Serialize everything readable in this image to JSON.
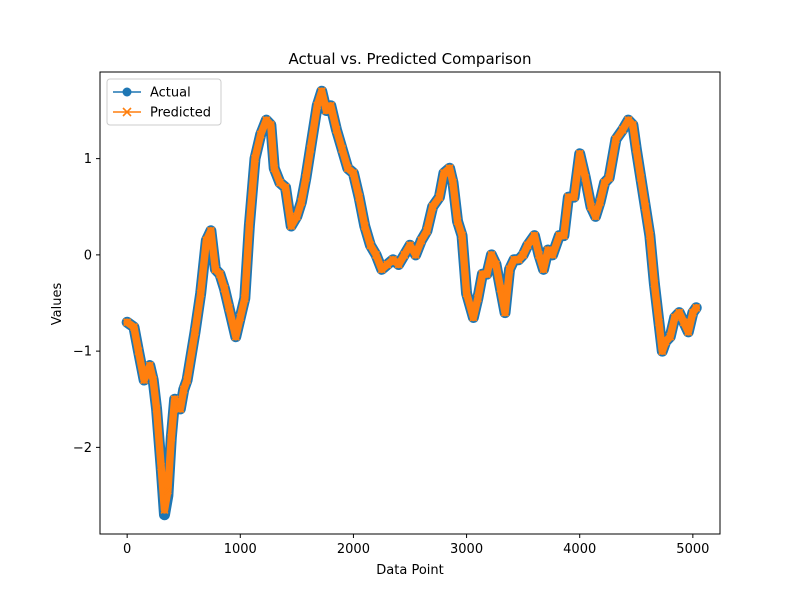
{
  "chart_data": {
    "type": "line",
    "title": "Actual vs. Predicted Comparison",
    "xlabel": "Data Point",
    "ylabel": "Values",
    "xlim": [
      -240,
      5240
    ],
    "ylim": [
      -2.9,
      1.9
    ],
    "xticks": [
      0,
      1000,
      2000,
      3000,
      4000,
      5000
    ],
    "xtick_labels": [
      "0",
      "1000",
      "2000",
      "3000",
      "4000",
      "5000"
    ],
    "yticks": [
      -2,
      -1,
      0,
      1
    ],
    "ytick_labels": [
      "−2",
      "−1",
      "0",
      "1"
    ],
    "grid": false,
    "legend_position": "upper-left",
    "series": [
      {
        "name": "Actual",
        "color": "#1f77b4",
        "marker": "circle",
        "x": [
          0,
          60,
          100,
          150,
          200,
          230,
          260,
          300,
          330,
          360,
          390,
          420,
          470,
          500,
          530,
          600,
          650,
          700,
          740,
          780,
          820,
          860,
          900,
          960,
          1000,
          1040,
          1080,
          1130,
          1180,
          1230,
          1270,
          1300,
          1350,
          1400,
          1450,
          1500,
          1540,
          1580,
          1620,
          1680,
          1720,
          1760,
          1800,
          1850,
          1900,
          1950,
          2000,
          2050,
          2100,
          2150,
          2200,
          2250,
          2300,
          2350,
          2400,
          2450,
          2500,
          2550,
          2600,
          2650,
          2700,
          2760,
          2800,
          2850,
          2880,
          2920,
          2960,
          3000,
          3060,
          3100,
          3140,
          3180,
          3220,
          3260,
          3300,
          3340,
          3380,
          3420,
          3460,
          3500,
          3540,
          3600,
          3640,
          3680,
          3720,
          3760,
          3820,
          3860,
          3900,
          3950,
          4000,
          4050,
          4100,
          4140,
          4180,
          4220,
          4260,
          4320,
          4380,
          4430,
          4470,
          4500,
          4540,
          4580,
          4620,
          4660,
          4700,
          4730,
          4760,
          4800,
          4840,
          4880,
          4920,
          4960,
          5000,
          5030
        ],
        "y": [
          -0.7,
          -0.75,
          -1.0,
          -1.3,
          -1.15,
          -1.3,
          -1.6,
          -2.2,
          -2.7,
          -2.5,
          -1.9,
          -1.5,
          -1.6,
          -1.4,
          -1.3,
          -0.8,
          -0.4,
          0.15,
          0.25,
          -0.15,
          -0.2,
          -0.35,
          -0.55,
          -0.85,
          -0.65,
          -0.45,
          0.3,
          1.0,
          1.25,
          1.4,
          1.35,
          0.9,
          0.75,
          0.7,
          0.3,
          0.4,
          0.55,
          0.8,
          1.1,
          1.55,
          1.7,
          1.5,
          1.55,
          1.3,
          1.1,
          0.9,
          0.85,
          0.6,
          0.3,
          0.1,
          0.0,
          -0.15,
          -0.1,
          -0.05,
          -0.1,
          0.0,
          0.1,
          0.0,
          0.15,
          0.25,
          0.5,
          0.6,
          0.85,
          0.9,
          0.75,
          0.35,
          0.2,
          -0.4,
          -0.65,
          -0.45,
          -0.2,
          -0.2,
          0.0,
          -0.1,
          -0.35,
          -0.6,
          -0.15,
          -0.05,
          -0.05,
          0.0,
          0.1,
          0.2,
          0.0,
          -0.15,
          0.05,
          0.0,
          0.2,
          0.2,
          0.6,
          0.6,
          1.05,
          0.8,
          0.5,
          0.4,
          0.55,
          0.75,
          0.8,
          1.2,
          1.3,
          1.4,
          1.35,
          1.1,
          0.8,
          0.5,
          0.2,
          -0.3,
          -0.7,
          -1.0,
          -0.9,
          -0.85,
          -0.65,
          -0.6,
          -0.7,
          -0.8,
          -0.6,
          -0.55
        ]
      },
      {
        "name": "Predicted",
        "color": "#ff7f0e",
        "marker": "x",
        "x": [
          0,
          60,
          100,
          150,
          200,
          230,
          260,
          300,
          330,
          360,
          390,
          420,
          470,
          500,
          530,
          600,
          650,
          700,
          740,
          780,
          820,
          860,
          900,
          960,
          1000,
          1040,
          1080,
          1130,
          1180,
          1230,
          1270,
          1300,
          1350,
          1400,
          1450,
          1500,
          1540,
          1580,
          1620,
          1680,
          1720,
          1760,
          1800,
          1850,
          1900,
          1950,
          2000,
          2050,
          2100,
          2150,
          2200,
          2250,
          2300,
          2350,
          2400,
          2450,
          2500,
          2550,
          2600,
          2650,
          2700,
          2760,
          2800,
          2850,
          2880,
          2920,
          2960,
          3000,
          3060,
          3100,
          3140,
          3180,
          3220,
          3260,
          3300,
          3340,
          3380,
          3420,
          3460,
          3500,
          3540,
          3600,
          3640,
          3680,
          3720,
          3760,
          3820,
          3860,
          3900,
          3950,
          4000,
          4050,
          4100,
          4140,
          4180,
          4220,
          4260,
          4320,
          4380,
          4430,
          4470,
          4500,
          4540,
          4580,
          4620,
          4660,
          4700,
          4730,
          4760,
          4800,
          4840,
          4880,
          4920,
          4960,
          5000,
          5030
        ],
        "y": [
          -0.7,
          -0.75,
          -1.0,
          -1.3,
          -1.15,
          -1.3,
          -1.6,
          -2.2,
          -2.65,
          -2.45,
          -1.9,
          -1.5,
          -1.6,
          -1.4,
          -1.3,
          -0.8,
          -0.4,
          0.15,
          0.25,
          -0.15,
          -0.2,
          -0.35,
          -0.55,
          -0.85,
          -0.65,
          -0.45,
          0.3,
          1.0,
          1.25,
          1.4,
          1.35,
          0.9,
          0.75,
          0.7,
          0.3,
          0.4,
          0.55,
          0.8,
          1.1,
          1.55,
          1.7,
          1.5,
          1.55,
          1.3,
          1.1,
          0.9,
          0.85,
          0.6,
          0.3,
          0.1,
          0.0,
          -0.15,
          -0.1,
          -0.05,
          -0.1,
          0.0,
          0.1,
          0.0,
          0.15,
          0.25,
          0.5,
          0.6,
          0.85,
          0.9,
          0.75,
          0.35,
          0.2,
          -0.4,
          -0.65,
          -0.45,
          -0.2,
          -0.2,
          0.0,
          -0.1,
          -0.35,
          -0.6,
          -0.15,
          -0.05,
          -0.05,
          0.0,
          0.1,
          0.2,
          0.0,
          -0.15,
          0.05,
          0.0,
          0.2,
          0.2,
          0.6,
          0.6,
          1.05,
          0.8,
          0.5,
          0.4,
          0.55,
          0.75,
          0.8,
          1.2,
          1.3,
          1.4,
          1.35,
          1.1,
          0.8,
          0.5,
          0.2,
          -0.3,
          -0.7,
          -1.0,
          -0.9,
          -0.85,
          -0.65,
          -0.6,
          -0.7,
          -0.8,
          -0.6,
          -0.55
        ]
      }
    ]
  }
}
